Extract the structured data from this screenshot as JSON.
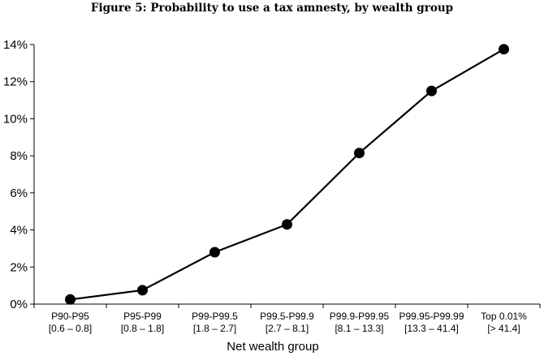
{
  "chart_data": {
    "type": "line",
    "title": "Figure 5: Probability to use a tax amnesty, by wealth group",
    "xlabel": "Net wealth group",
    "ylabel": "",
    "categories": [
      [
        "P90-P95",
        "[0.6 – 0.8]"
      ],
      [
        "P95-P99",
        "[0.8 – 1.8]"
      ],
      [
        "P99-P99.5",
        "[1.8 – 2.7]"
      ],
      [
        "P99.5-P99.9",
        "[2.7 – 8.1]"
      ],
      [
        "P99.9-P99.95",
        "[8.1 – 13.3]"
      ],
      [
        "P99.95-P99.99",
        "[13.3 – 41.4]"
      ],
      [
        "Top 0.01%",
        "[> 41.4]"
      ]
    ],
    "values": [
      0.25,
      0.75,
      2.8,
      4.3,
      8.15,
      11.5,
      13.75
    ],
    "ylim": [
      0,
      14
    ],
    "yticks": [
      "0%",
      "2%",
      "4%",
      "6%",
      "8%",
      "10%",
      "12%",
      "14%"
    ],
    "grid": false,
    "line_color": "#000000",
    "marker_color": "#000000"
  }
}
